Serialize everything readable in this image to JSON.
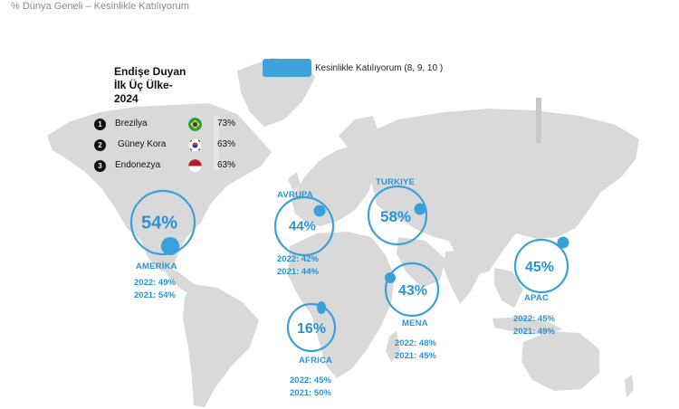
{
  "page_title": "% Dünya Geneli – Kesinlikle Katılıyorum",
  "legend": {
    "label": "Kesinlikle Katılıyorum (8, 9, 10 )",
    "color": "#3fa2dc"
  },
  "top_countries": {
    "title_line1": "Endişe Duyan",
    "title_line2": "İlk Üç Ülke-",
    "title_line3": "2024",
    "items": [
      {
        "rank": "1",
        "country": "Brezilya",
        "flag": "brazil-flag-icon",
        "pct": "73%"
      },
      {
        "rank": "2",
        "country": "Güney Kora",
        "flag": "south-korea-flag-icon",
        "pct": "63%"
      },
      {
        "rank": "3",
        "country": "Endonezya",
        "flag": "indonesia-flag-icon",
        "pct": "63%"
      }
    ]
  },
  "regions": {
    "amerika": {
      "name": "AMERİKA",
      "pct": "54%",
      "y2022": "2022: 49%",
      "y2021": "2021: 54%"
    },
    "avrupa": {
      "name": "AVRUPA",
      "pct": "44%",
      "y2022": "2022: 42%",
      "y2021": "2021: 44%"
    },
    "turkiye": {
      "name": "TURKIYE",
      "pct": "58%"
    },
    "mena": {
      "name": "MENA",
      "pct": "43%",
      "y2022": "2022: 48%",
      "y2021": "2021: 45%"
    },
    "africa": {
      "name": "AFRICA",
      "pct": "16%",
      "y2022": "2022: 45%",
      "y2021": "2021: 50%"
    },
    "apac": {
      "name": "APAC",
      "pct": "45%",
      "y2022": "2022: 45%",
      "y2021": "2021: 49%"
    }
  },
  "colors": {
    "accent": "#2c93d2",
    "map": "#d6d6d6"
  }
}
